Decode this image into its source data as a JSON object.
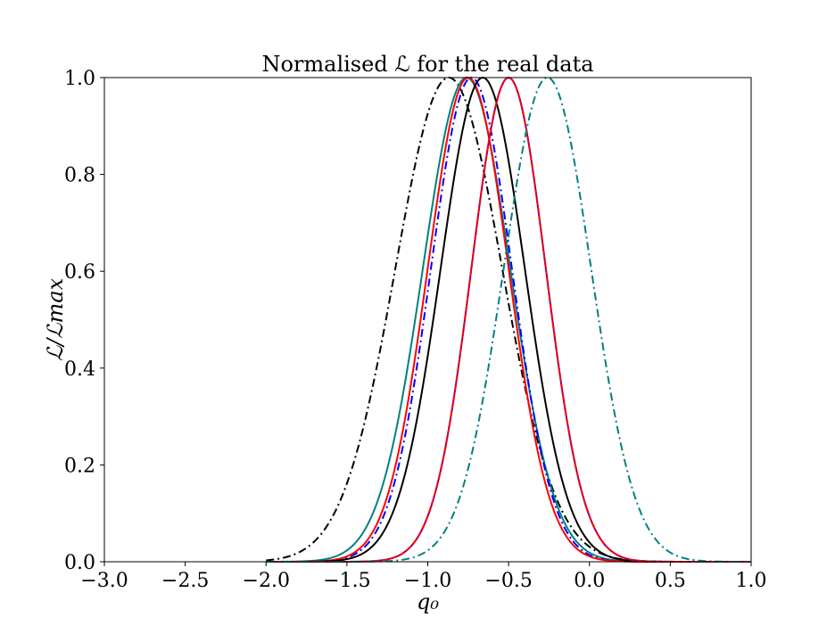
{
  "chart_data": {
    "type": "line",
    "title": "Normalised ℒ for the real data",
    "xlabel": "q₀",
    "ylabel": "ℒ/ℒmax",
    "xlim": [
      -3.0,
      1.0
    ],
    "ylim": [
      0.0,
      1.0
    ],
    "xticks": [
      -3.0,
      -2.5,
      -2.0,
      -1.5,
      -1.0,
      -0.5,
      0.0,
      0.5,
      1.0
    ],
    "xtick_labels": [
      "−3.0",
      "−2.5",
      "−2.0",
      "−1.5",
      "−1.0",
      "−0.5",
      "0.0",
      "0.5",
      "1.0"
    ],
    "yticks": [
      0.0,
      0.2,
      0.4,
      0.6,
      0.8,
      1.0
    ],
    "ytick_labels": [
      "0.0",
      "0.2",
      "0.4",
      "0.6",
      "0.8",
      "1.0"
    ],
    "grid": false,
    "legend": "none",
    "x_range": [
      -2.0,
      1.0
    ],
    "series": [
      {
        "color": "#000000",
        "style": "dashdot",
        "peak_x": -0.87,
        "sigma": 0.33
      },
      {
        "color": "#008080",
        "style": "solid",
        "peak_x": -0.76,
        "sigma": 0.27
      },
      {
        "color": "#0000ff",
        "style": "dashdot",
        "peak_x": -0.73,
        "sigma": 0.25
      },
      {
        "color": "#ff0000",
        "style": "solid",
        "peak_x": -0.75,
        "sigma": 0.25
      },
      {
        "color": "#000000",
        "style": "solid",
        "peak_x": -0.66,
        "sigma": 0.26
      },
      {
        "color": "#800080",
        "style": "solid",
        "peak_x": -0.5,
        "sigma": 0.23
      },
      {
        "color": "#ff0000",
        "style": "dashed",
        "peak_x": -0.5,
        "sigma": 0.23
      },
      {
        "color": "#008080",
        "style": "dashdot",
        "peak_x": -0.26,
        "sigma": 0.27
      }
    ]
  }
}
